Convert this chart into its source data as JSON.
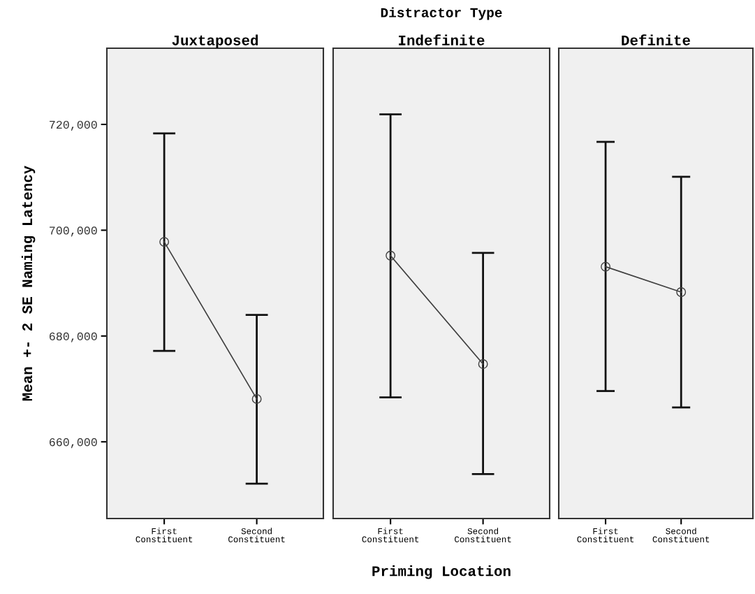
{
  "chart_data": [
    {
      "type": "line",
      "title": "Juxtaposed",
      "ylabel": "Mean +- 2 SE Naming Latency",
      "categories": [
        "First\nConstituent",
        "Second\nConstituent"
      ],
      "series": [
        {
          "color": "#404040",
          "values": [
            697800,
            668100
          ],
          "errors": [
            [
              677200,
              718300
            ],
            [
              652100,
              684000
            ]
          ]
        }
      ],
      "marker": "circle",
      "line_style": "solid",
      "ylim": [
        645500,
        734400
      ],
      "yticks": [
        {
          "value": 660000,
          "label": "660,000"
        },
        {
          "value": 680000,
          "label": "680,000"
        },
        {
          "value": 700000,
          "label": "700,000"
        },
        {
          "value": 720000,
          "label": "720,000"
        }
      ],
      "grid": false,
      "legend": false
    },
    {
      "type": "line",
      "title": "Indefinite",
      "subtitle": "Distractor Type",
      "xlabel": "Priming Location",
      "categories": [
        "First\nConstituent",
        "Second\nConstituent"
      ],
      "series": [
        {
          "color": "#404040",
          "values": [
            695200,
            674700
          ],
          "errors": [
            [
              668400,
              721900
            ],
            [
              653900,
              695700
            ]
          ]
        }
      ],
      "marker": "circle",
      "line_style": "solid",
      "ylim": [
        645500,
        734400
      ],
      "tick_labels": "x",
      "grid": false,
      "legend": false
    },
    {
      "type": "line",
      "title": "Definite",
      "categories": [
        "First\nConstituent",
        "Second\nConstituent"
      ],
      "series": [
        {
          "color": "#404040",
          "values": [
            693100,
            688300
          ],
          "errors": [
            [
              669600,
              716700
            ],
            [
              666500,
              710100
            ]
          ]
        }
      ],
      "marker": "circle",
      "line_style": "solid",
      "ylim": [
        645500,
        734400
      ],
      "tick_labels": "x",
      "grid": false,
      "legend": false
    }
  ]
}
